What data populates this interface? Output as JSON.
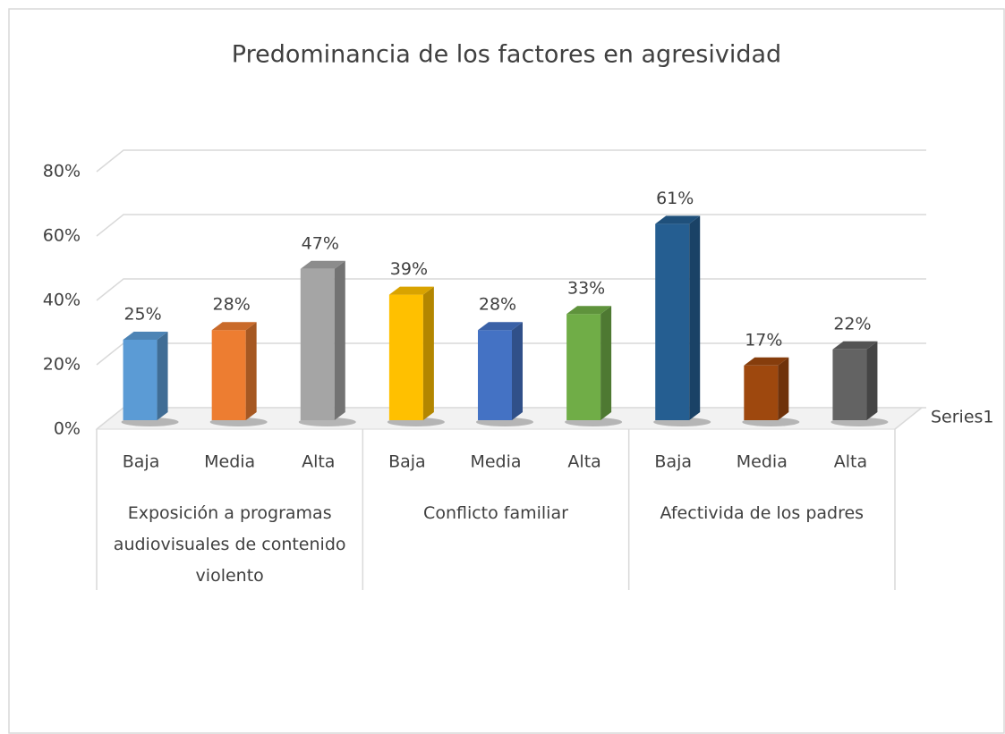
{
  "chart_data": {
    "type": "bar3d",
    "title": "Predominancia de los factores en agresividad",
    "categories": [
      "Baja",
      "Media",
      "Alta",
      "Baja",
      "Media",
      "Alta",
      "Baja",
      "Media",
      "Alta"
    ],
    "groups": [
      "Exposición a programas audiovisuales de contenido violento",
      "Conflicto familiar",
      "Afectivida de los padres"
    ],
    "series": [
      {
        "name": "Series1",
        "values": [
          25,
          28,
          47,
          39,
          28,
          33,
          61,
          17,
          22
        ],
        "value_labels": [
          "25%",
          "28%",
          "47%",
          "39%",
          "28%",
          "33%",
          "61%",
          "17%",
          "22%"
        ],
        "colors": [
          "#5b9bd5",
          "#ed7d31",
          "#a5a5a5",
          "#ffc000",
          "#4472c4",
          "#70ad47",
          "#255e91",
          "#9e480e",
          "#636363"
        ]
      }
    ],
    "ylim": [
      0,
      80
    ],
    "yticks": [
      {
        "value": 0,
        "label": "0%"
      },
      {
        "value": 20,
        "label": "20%"
      },
      {
        "value": 40,
        "label": "40%"
      },
      {
        "value": 60,
        "label": "60%"
      },
      {
        "value": 80,
        "label": "80%"
      }
    ],
    "grid": true
  }
}
